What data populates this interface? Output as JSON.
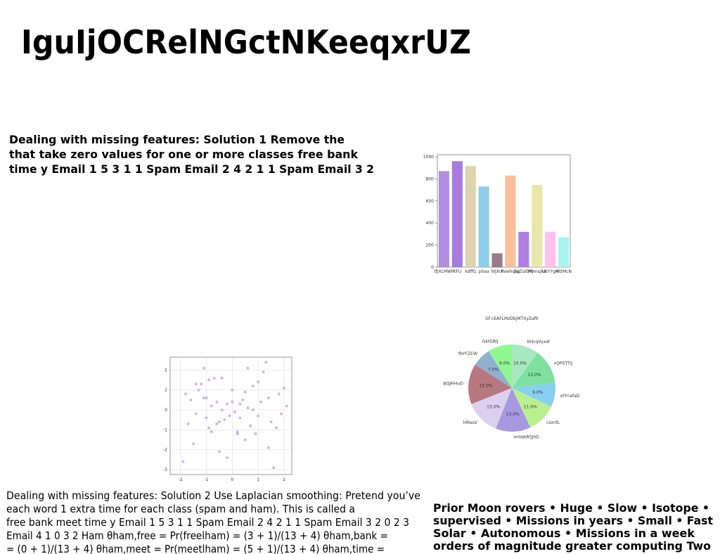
{
  "title": "IguIjOCRelNGctNKeeqxrUZ",
  "block1": {
    "lines": [
      "Dealing with missing features: Solution 1 Remove the",
      "that take zero values for one or more classes free bank",
      "time y Email 1 5 3 1 1 Spam Email 2 4 2 1 1 Spam Email 3 2"
    ]
  },
  "block2": {
    "lines": [
      "Dealing with missing features: Solution 2 Use Laplacian smoothing: Pretend you’ve",
      "each word 1 extra time for each class (spam and ham). This is called a",
      "free bank meet time y Email 1 5 3 1 1 Spam Email 2 4 2 1 1 Spam Email 3 2 0 2 3",
      "Email 4 1 0 3 2 Ham θham,free = Pr(freelham) = (3 + 1)/(13 + 4) θham,bank =",
      "= (0 + 1)/(13 + 4) θham,meet = Pr(meetlham) = (5 + 1)/(13 + 4) θham,time ="
    ]
  },
  "block3": {
    "lines": [
      "Prior Moon rovers • Huge • Slow • Isotope •",
      "supervised • Missions in years • Small • Fast",
      "Solar • Autonomous • Missions in a week",
      "orders of magnitude greater computing Two"
    ]
  },
  "chart_data": [
    {
      "type": "bar",
      "categories": [
        "tfjXLMWF",
        "KFU",
        "kdffG",
        "phaa",
        "lVJXrk",
        "Pawhqsp",
        "SqZsIEMJ",
        "Hmnsjkd",
        "UkYYgH",
        "MttMcN"
      ],
      "values": [
        870,
        960,
        915,
        730,
        125,
        830,
        320,
        745,
        320,
        270
      ],
      "colors": [
        "#b08ee0",
        "#a77bdd",
        "#ddd3b0",
        "#8ecde8",
        "#9a7b8b",
        "#f8c09a",
        "#b07fe0",
        "#e8e6a8",
        "#ffc0ee",
        "#a8f5f0"
      ],
      "ylim": [
        0,
        1000
      ],
      "yticks": [
        0,
        200,
        400,
        600,
        800,
        1000
      ]
    },
    {
      "type": "scatter",
      "color": "#c9a3dd",
      "grid": true,
      "x": [
        -1.9,
        -1.8,
        -1.7,
        -1.6,
        -1.5,
        -1.4,
        -1.3,
        -1.2,
        -1.1,
        -1.0,
        -1.0,
        -0.9,
        -0.9,
        -0.8,
        -0.8,
        -0.7,
        -0.6,
        -0.6,
        -0.5,
        -0.4,
        -0.4,
        -0.3,
        -0.2,
        -0.2,
        -0.1,
        0.0,
        0.0,
        0.1,
        0.2,
        0.3,
        0.3,
        0.4,
        0.5,
        0.5,
        0.6,
        0.7,
        0.8,
        0.9,
        1.0,
        1.1,
        1.2,
        1.3,
        1.4,
        1.5,
        1.6,
        1.7,
        1.8,
        1.9,
        2.0,
        2.1,
        -1.4,
        -0.5,
        0.2,
        0.6,
        1.0,
        1.4,
        -1.1,
        0.8
      ],
      "values": [
        -2.6,
        0.8,
        -0.7,
        0.5,
        -1.7,
        -0.2,
        1.0,
        1.3,
        2.1,
        -0.4,
        0.6,
        -0.9,
        1.5,
        -1.1,
        0.2,
        1.6,
        -0.7,
        0.4,
        -2.1,
        0.0,
        1.6,
        -0.5,
        0.3,
        -2.4,
        -0.3,
        0.4,
        1.0,
        -0.1,
        -1.1,
        0.3,
        -0.4,
        0.5,
        -1.5,
        0.9,
        2.1,
        -0.8,
        0.0,
        -1.2,
        1.4,
        0.4,
        1.9,
        2.4,
        -1.9,
        -0.6,
        -2.9,
        -0.9,
        0.8,
        -0.2,
        1.1,
        0.2,
        1.3,
        -0.6,
        -1.2,
        0.1,
        -0.3,
        0.6,
        0.6,
        1.2
      ],
      "xlim": [
        -2.4,
        2.3
      ],
      "ylim": [
        -3.25,
        2.65
      ],
      "xticks": [
        -2,
        -1,
        0,
        1,
        2
      ],
      "yticks": [
        -3,
        -2,
        -1,
        0,
        1,
        2
      ]
    },
    {
      "type": "pie",
      "title": "Gf  cEAFLMzDbjMTXyZaftl",
      "categories": [
        "GktGRIj",
        "fbYFZEW",
        "BQJFiHuO",
        "hRleLV",
        "imVakRSJhD",
        "cUmfL",
        "xFFcefaD",
        "xQPSTTIj",
        "tIHcqVyxdr"
      ],
      "values": [
        9,
        7,
        15,
        13,
        13,
        11,
        9,
        13,
        10
      ],
      "value_labels": [
        "9.0%",
        "7.0%",
        "15.0%",
        "13.0%",
        "13.0%",
        "11.0%",
        "9.0%",
        "13.0%",
        "10.0%"
      ],
      "colors": [
        "#90f890",
        "#90b0d0",
        "#b87880",
        "#dcd0f0",
        "#a898e0",
        "#b8f090",
        "#88d0f0",
        "#80e0a0",
        "#a8e8c0"
      ]
    }
  ]
}
